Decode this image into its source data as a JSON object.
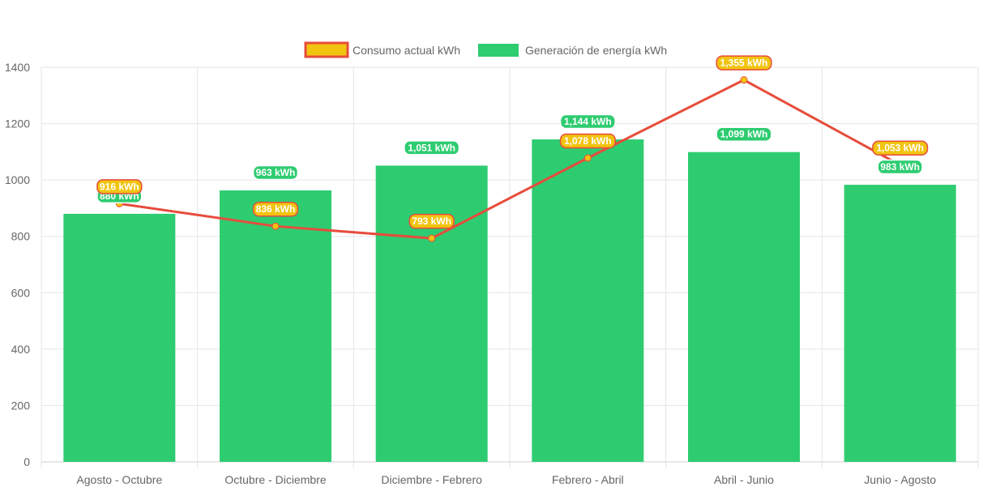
{
  "colors": {
    "bar": "#2ecc71",
    "line": "#e74c3c",
    "point": "#f1c40f",
    "grid": "#e5e5e5",
    "axis_text": "#666666",
    "label_bar_bg": "#2ecc71",
    "label_line_bg": "#f1c40f",
    "label_line_border": "#e74c3c"
  },
  "legend": {
    "consumption": "Consumo actual kWh",
    "generation": "Generación de energía kWh"
  },
  "chart_data": {
    "type": "bar",
    "title": "",
    "xlabel": "",
    "ylabel": "",
    "ylim": [
      0,
      1400
    ],
    "yticks": [
      0,
      200,
      400,
      600,
      800,
      1000,
      1200,
      1400
    ],
    "grid": true,
    "legend_position": "top-center",
    "categories": [
      "Agosto - Octubre",
      "Octubre - Diciembre",
      "Diciembre - Febrero",
      "Febrero - Abril",
      "Abril - Junio",
      "Junio - Agosto"
    ],
    "series": [
      {
        "name": "Generación de energía kWh",
        "type": "bar",
        "values": [
          880,
          963,
          1051,
          1144,
          1099,
          983
        ],
        "labels": [
          "880 kWh",
          "963 kWh",
          "1,051 kWh",
          "1,144 kWh",
          "1,099 kWh",
          "983 kWh"
        ]
      },
      {
        "name": "Consumo actual kWh",
        "type": "line",
        "values": [
          916,
          836,
          793,
          1078,
          1355,
          1053
        ],
        "labels": [
          "916 kWh",
          "836 kWh",
          "793 kWh",
          "1,078 kWh",
          "1,355 kWh",
          "1,053 kWh"
        ]
      }
    ]
  }
}
